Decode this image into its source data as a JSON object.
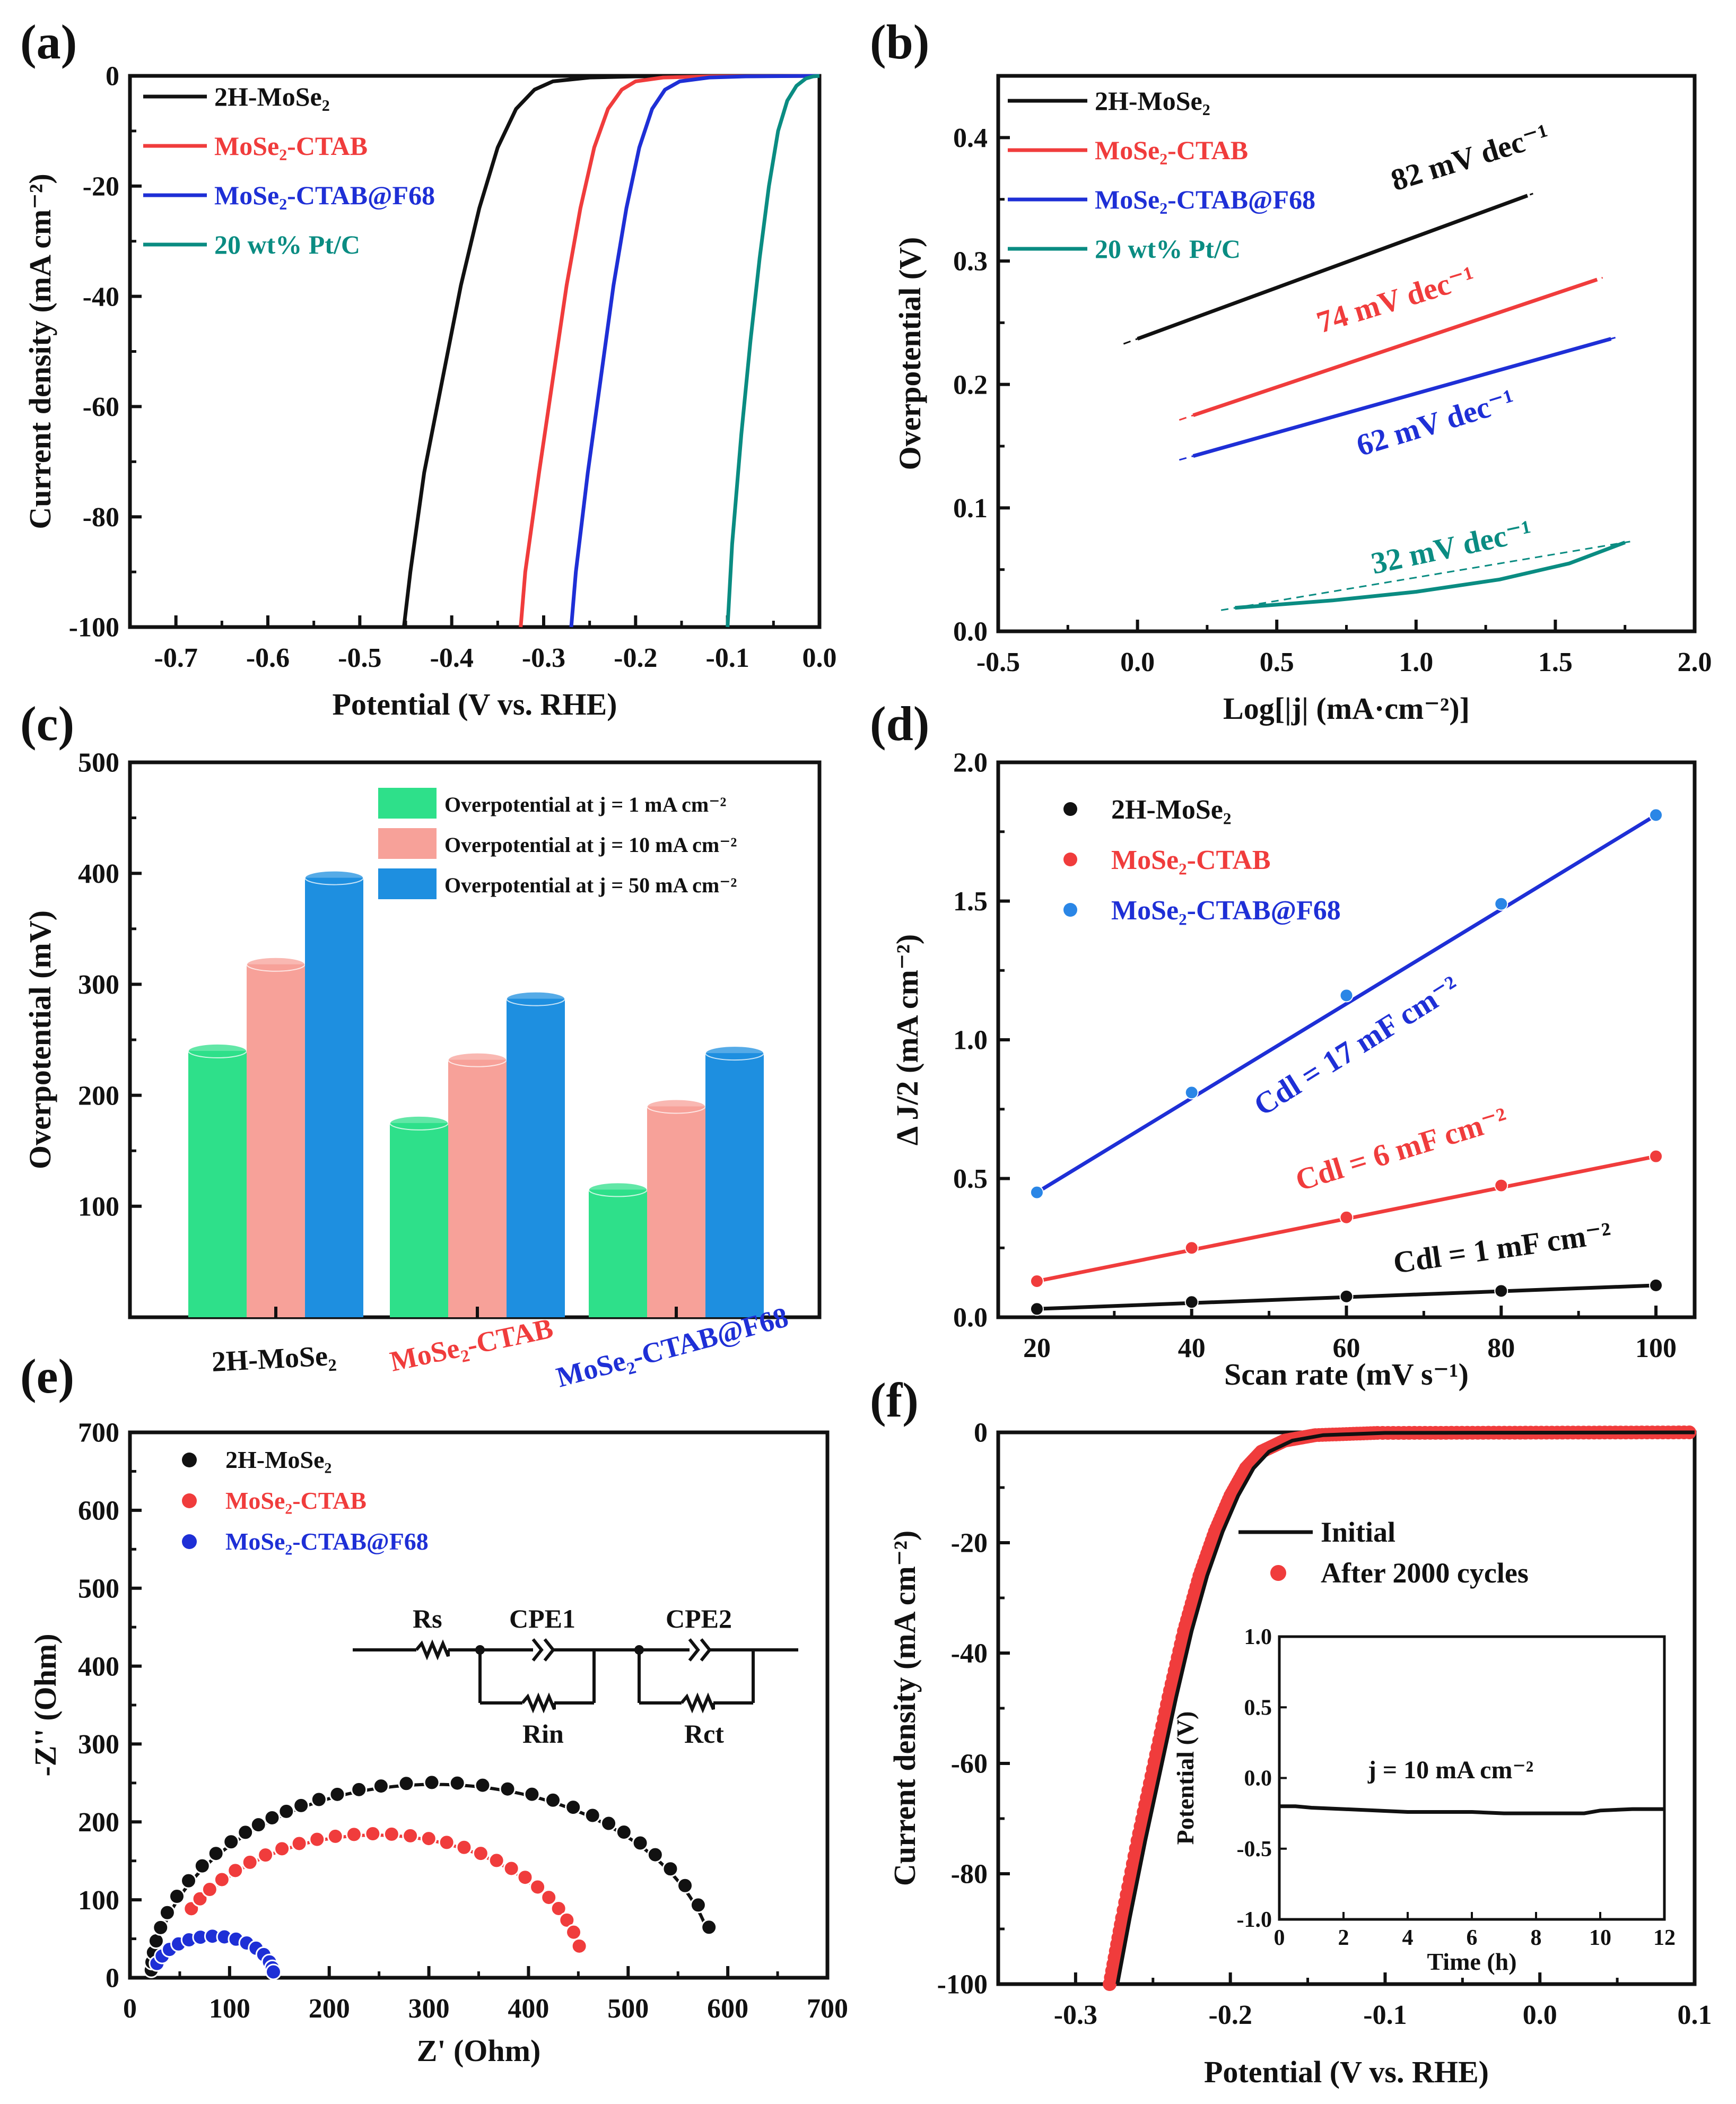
{
  "colors": {
    "black": "#111111",
    "red": "#f03c3c",
    "blue": "#1e2fd6",
    "teal": "#0a8c82",
    "green": "#2ee08a",
    "salmon": "#f7a199",
    "sky": "#1e8fe0",
    "dotblue": "#2a86e6"
  },
  "chart_data": [
    {
      "id": "a",
      "panel_label": "(a)",
      "type": "line",
      "xlabel": "Potential (V vs. RHE)",
      "ylabel": "Current density (mA cm⁻²)",
      "xlim": [
        -0.75,
        0.0
      ],
      "ylim": [
        -100,
        0
      ],
      "xticks": [
        "-0.7",
        "-0.6",
        "-0.5",
        "-0.4",
        "-0.3",
        "-0.2",
        "-0.1",
        "0.0"
      ],
      "yticks": [
        "0",
        "-20",
        "-40",
        "-60",
        "-80",
        "-100"
      ],
      "series": [
        {
          "name": "2H-MoSe₂",
          "color": "black",
          "x": [
            -0.452,
            -0.445,
            -0.43,
            -0.41,
            -0.39,
            -0.37,
            -0.35,
            -0.33,
            -0.31,
            -0.29,
            -0.25,
            -0.2,
            0.0
          ],
          "y": [
            -100,
            -90,
            -72,
            -55,
            -38,
            -24,
            -13,
            -6,
            -2.5,
            -1,
            -0.3,
            -0.1,
            0
          ]
        },
        {
          "name": "MoSe₂-CTAB",
          "color": "red",
          "x": [
            -0.325,
            -0.32,
            -0.305,
            -0.29,
            -0.275,
            -0.26,
            -0.245,
            -0.23,
            -0.215,
            -0.2,
            -0.17,
            -0.12,
            0.0
          ],
          "y": [
            -100,
            -90,
            -72,
            -55,
            -38,
            -24,
            -13,
            -6,
            -2.5,
            -1,
            -0.3,
            -0.1,
            0
          ]
        },
        {
          "name": "MoSe₂-CTAB@F68",
          "color": "blue",
          "x": [
            -0.27,
            -0.265,
            -0.252,
            -0.238,
            -0.224,
            -0.21,
            -0.196,
            -0.182,
            -0.168,
            -0.152,
            -0.12,
            -0.08,
            0.0
          ],
          "y": [
            -100,
            -90,
            -72,
            -55,
            -38,
            -24,
            -13,
            -6,
            -2.5,
            -1,
            -0.3,
            -0.1,
            0
          ]
        },
        {
          "name": "20 wt% Pt/C",
          "color": "teal",
          "x": [
            -0.1,
            -0.095,
            -0.085,
            -0.075,
            -0.065,
            -0.055,
            -0.045,
            -0.035,
            -0.025,
            -0.015,
            -0.007,
            0.0
          ],
          "y": [
            -100,
            -85,
            -65,
            -48,
            -33,
            -20,
            -10,
            -4.5,
            -1.8,
            -0.5,
            -0.1,
            0
          ]
        }
      ]
    },
    {
      "id": "b",
      "panel_label": "(b)",
      "type": "line",
      "xlabel": "Log[|j| (mA·cm⁻²)]",
      "ylabel": "Overpotential (V)",
      "xlim": [
        -0.5,
        2.0
      ],
      "ylim": [
        0.0,
        0.45
      ],
      "xticks": [
        "-0.5",
        "0.0",
        "0.5",
        "1.0",
        "1.5",
        "2.0"
      ],
      "yticks": [
        "0.0",
        "0.1",
        "0.2",
        "0.3",
        "0.4"
      ],
      "series": [
        {
          "name": "2H-MoSe₂",
          "color": "black",
          "x": [
            0.0,
            1.4
          ],
          "y": [
            0.237,
            0.353
          ],
          "annotation": "82 mV dec⁻¹"
        },
        {
          "name": "MoSe₂-CTAB",
          "color": "red",
          "x": [
            0.2,
            1.65
          ],
          "y": [
            0.175,
            0.285
          ],
          "annotation": "74 mV dec⁻¹"
        },
        {
          "name": "MoSe₂-CTAB@F68",
          "color": "blue",
          "x": [
            0.2,
            1.7
          ],
          "y": [
            0.142,
            0.237
          ],
          "annotation": "62 mV dec⁻¹"
        },
        {
          "name": "20 wt% Pt/C",
          "color": "teal",
          "x": [
            0.35,
            0.7,
            1.0,
            1.3,
            1.55,
            1.75
          ],
          "y": [
            0.019,
            0.025,
            0.032,
            0.042,
            0.055,
            0.072
          ],
          "annotation": "32 mV dec⁻¹"
        }
      ]
    },
    {
      "id": "c",
      "panel_label": "(c)",
      "type": "bar",
      "ylabel": "Overpotential  (mV)",
      "ylim": [
        0,
        500
      ],
      "yticks": [
        "100",
        "200",
        "300",
        "400",
        "500"
      ],
      "categories": [
        "2H-MoSe₂",
        "MoSe₂-CTAB",
        "MoSe₂-CTAB@F68"
      ],
      "category_colors": [
        "black",
        "red",
        "blue"
      ],
      "series": [
        {
          "name": "Overpotential at j = 1 mA cm⁻²",
          "color": "green",
          "values": [
            240,
            175,
            115
          ]
        },
        {
          "name": "Overpotential at j = 10 mA cm⁻²",
          "color": "salmon",
          "values": [
            318,
            232,
            190
          ]
        },
        {
          "name": "Overpotential at j = 50 mA cm⁻²",
          "color": "sky",
          "values": [
            396,
            287,
            238
          ]
        }
      ]
    },
    {
      "id": "d",
      "panel_label": "(d)",
      "type": "scatter",
      "xlabel": "Scan rate (mV s⁻¹)",
      "ylabel": "Δ J/2 (mA cm⁻²)",
      "xlim": [
        15,
        105
      ],
      "ylim": [
        0.0,
        2.0
      ],
      "xticks": [
        "20",
        "40",
        "60",
        "80",
        "100"
      ],
      "yticks": [
        "0.0",
        "0.5",
        "1.0",
        "1.5",
        "2.0"
      ],
      "series": [
        {
          "name": "2H-MoSe₂",
          "color": "black",
          "x": [
            20,
            40,
            60,
            80,
            100
          ],
          "y": [
            0.03,
            0.055,
            0.075,
            0.095,
            0.115
          ],
          "annotation": "Cdl = 1 mF  cm⁻²"
        },
        {
          "name": "MoSe₂-CTAB",
          "color": "red",
          "x": [
            20,
            40,
            60,
            80,
            100
          ],
          "y": [
            0.13,
            0.25,
            0.36,
            0.475,
            0.58
          ],
          "annotation": "Cdl = 6 mF  cm⁻²"
        },
        {
          "name": "MoSe₂-CTAB@F68",
          "color": "dotblue",
          "x": [
            20,
            40,
            60,
            80,
            100
          ],
          "y": [
            0.45,
            0.81,
            1.16,
            1.49,
            1.81
          ],
          "annotation": "Cdl = 17 mF  cm⁻²"
        }
      ]
    },
    {
      "id": "e",
      "panel_label": "(e)",
      "type": "scatter",
      "xlabel": "Z' (Ohm)",
      "ylabel": "-Z'' (Ohm)",
      "xlim": [
        0,
        700
      ],
      "ylim": [
        0,
        700
      ],
      "xticks": [
        "0",
        "100",
        "200",
        "300",
        "400",
        "500",
        "600",
        "700"
      ],
      "yticks": [
        "0",
        "100",
        "200",
        "300",
        "400",
        "500",
        "600",
        "700"
      ],
      "circuit_labels": [
        "Rs",
        "CPE1",
        "CPE2",
        "Rin",
        "Rct"
      ],
      "series": [
        {
          "name": "2H-MoSe₂",
          "color": "black",
          "center": 306,
          "radius": 282,
          "pts": [
            0.04,
            0.08,
            0.13,
            0.19,
            0.26,
            0.34,
            0.43,
            0.52,
            0.61,
            0.69,
            0.77,
            0.84,
            0.9,
            0.96,
            1.02,
            1.08,
            1.15,
            1.22,
            1.3,
            1.38,
            1.47,
            1.56,
            1.65,
            1.74,
            1.83,
            1.92,
            2.0,
            2.08,
            2.16,
            2.23,
            2.3,
            2.38,
            2.46,
            2.55,
            2.65,
            2.76,
            2.88
          ]
        },
        {
          "name": "MoSe₂-CTAB",
          "color": "red",
          "center": 246,
          "radius": 208,
          "pts": [
            0.5,
            0.58,
            0.66,
            0.75,
            0.84,
            0.93,
            1.02,
            1.11,
            1.2,
            1.29,
            1.38,
            1.47,
            1.56,
            1.65,
            1.74,
            1.83,
            1.92,
            2.01,
            2.1,
            2.19,
            2.28,
            2.37,
            2.46,
            2.55,
            2.64,
            2.73,
            2.82,
            2.92
          ]
        },
        {
          "name": "MoSe₂-CTAB@F68",
          "color": "blue",
          "center": 84,
          "radius": 60,
          "pts": [
            0.35,
            0.55,
            0.75,
            0.95,
            1.15,
            1.35,
            1.55,
            1.75,
            1.95,
            2.15,
            2.35,
            2.55,
            2.75,
            2.9,
            3.0
          ]
        }
      ]
    },
    {
      "id": "f",
      "panel_label": "(f)",
      "type": "line",
      "xlabel": "Potential (V vs. RHE)",
      "ylabel": "Current density (mA cm⁻²)",
      "xlim": [
        -0.35,
        0.1
      ],
      "ylim": [
        -100,
        0
      ],
      "xticks": [
        "-0.3",
        "-0.2",
        "-0.1",
        "0.0",
        "0.1"
      ],
      "yticks": [
        "0",
        "-20",
        "-40",
        "-60",
        "-80",
        "-100"
      ],
      "series": [
        {
          "name": "Initial",
          "color": "black",
          "x": [
            -0.273,
            -0.265,
            -0.255,
            -0.245,
            -0.235,
            -0.225,
            -0.215,
            -0.205,
            -0.195,
            -0.185,
            -0.175,
            -0.16,
            -0.14,
            -0.1,
            0.1
          ],
          "y": [
            -100,
            -88,
            -74,
            -61,
            -48,
            -36,
            -26,
            -18,
            -11.5,
            -6.5,
            -3.5,
            -1.5,
            -0.5,
            -0.1,
            0
          ]
        },
        {
          "name": "After 2000 cycles",
          "color": "red",
          "x": [
            -0.278,
            -0.27,
            -0.26,
            -0.25,
            -0.24,
            -0.23,
            -0.22,
            -0.21,
            -0.2,
            -0.19,
            -0.18,
            -0.165,
            -0.145,
            -0.105,
            0.1
          ],
          "y": [
            -100,
            -88,
            -74,
            -61,
            -48,
            -36,
            -26,
            -18,
            -11.5,
            -6.5,
            -3.5,
            -1.5,
            -0.5,
            -0.1,
            0
          ]
        }
      ],
      "inset": {
        "xlabel": "Time (h)",
        "ylabel": "Potential (V)",
        "xlim": [
          0,
          12
        ],
        "ylim": [
          -1.0,
          1.0
        ],
        "xticks": [
          "0",
          "2",
          "4",
          "6",
          "8",
          "10",
          "12"
        ],
        "yticks": [
          "1.0",
          "0.5",
          "0.0",
          "-0.5",
          "-1.0"
        ],
        "annotation": "j = 10 mA cm⁻²",
        "x": [
          0,
          0.5,
          1,
          2,
          3,
          4,
          5,
          6,
          7,
          8,
          9,
          9.5,
          10,
          11,
          12
        ],
        "y": [
          -0.2,
          -0.2,
          -0.21,
          -0.22,
          -0.23,
          -0.24,
          -0.24,
          -0.24,
          -0.25,
          -0.25,
          -0.25,
          -0.25,
          -0.23,
          -0.22,
          -0.22
        ]
      }
    }
  ]
}
